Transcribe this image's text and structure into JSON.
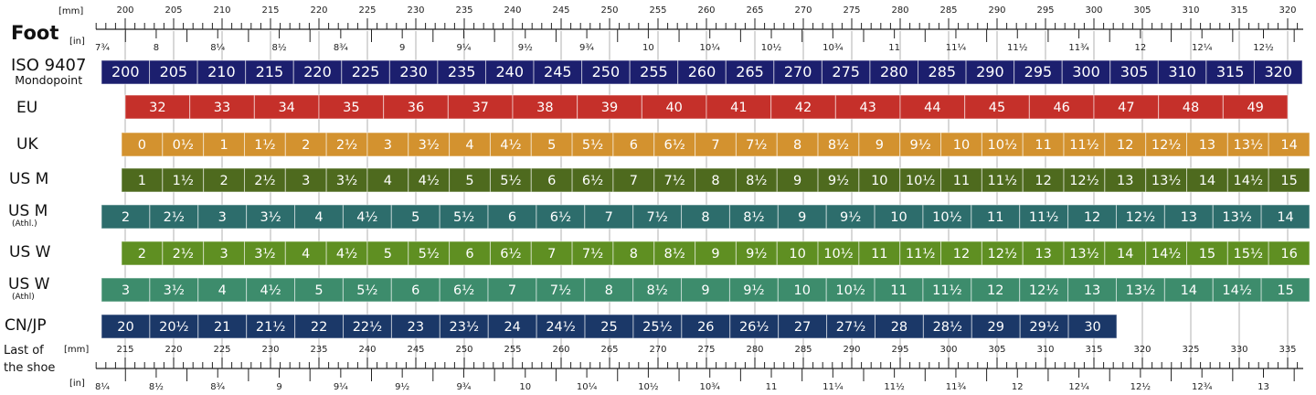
{
  "top_ruler": {
    "title": "Foot",
    "mm_unit": "[mm]",
    "in_unit": "[in]",
    "mm_labels": [
      "200",
      "205",
      "210",
      "215",
      "220",
      "225",
      "230",
      "235",
      "240",
      "245",
      "250",
      "255",
      "260",
      "265",
      "270",
      "275",
      "280",
      "285",
      "290",
      "295",
      "300",
      "305",
      "310",
      "315",
      "320"
    ],
    "in_labels": [
      "7¾",
      "8",
      "8¼",
      "8½",
      "8¾",
      "9",
      "9¼",
      "9½",
      "9¾",
      "10",
      "10¼",
      "10½",
      "10¾",
      "11",
      "11¼",
      "11½",
      "11¾",
      "12",
      "12¼",
      "12½"
    ]
  },
  "bottom_ruler": {
    "title_line1": "Last of",
    "title_line2": "the shoe",
    "mm_unit": "[mm]",
    "in_unit": "[in]",
    "mm_labels": [
      "215",
      "220",
      "225",
      "230",
      "235",
      "240",
      "245",
      "250",
      "255",
      "260",
      "265",
      "270",
      "275",
      "280",
      "285",
      "290",
      "295",
      "300",
      "305",
      "310",
      "315",
      "320",
      "325",
      "330",
      "335"
    ],
    "in_labels": [
      "8¼",
      "8½",
      "8¾",
      "9",
      "9¼",
      "9½",
      "9¾",
      "10",
      "10¼",
      "10½",
      "10¾",
      "11",
      "11¼",
      "11½",
      "11¾",
      "12",
      "12¼",
      "12½",
      "12¾",
      "13"
    ]
  },
  "rows": [
    {
      "label": "ISO 9407",
      "sublabel": "Mondopoint",
      "color": "#1c1f6e",
      "values": [
        "200",
        "205",
        "210",
        "215",
        "220",
        "225",
        "230",
        "235",
        "240",
        "245",
        "250",
        "255",
        "260",
        "265",
        "270",
        "275",
        "280",
        "285",
        "290",
        "295",
        "300",
        "305",
        "310",
        "315",
        "320"
      ]
    },
    {
      "label": "EU",
      "sublabel": "",
      "color": "#c5302a",
      "values": [
        "32",
        "33",
        "34",
        "35",
        "36",
        "37",
        "38",
        "39",
        "40",
        "41",
        "42",
        "43",
        "44",
        "45",
        "46",
        "47",
        "48",
        "49"
      ]
    },
    {
      "label": "UK",
      "sublabel": "",
      "color": "#d3922f",
      "values": [
        "0",
        "0½",
        "1",
        "1½",
        "2",
        "2½",
        "3",
        "3½",
        "4",
        "4½",
        "5",
        "5½",
        "6",
        "6½",
        "7",
        "7½",
        "8",
        "8½",
        "9",
        "9½",
        "10",
        "10½",
        "11",
        "11½",
        "12",
        "12½",
        "13",
        "13½",
        "14"
      ]
    },
    {
      "label": "US M",
      "sublabel": "",
      "color": "#4e6a1e",
      "values": [
        "1",
        "1½",
        "2",
        "2½",
        "3",
        "3½",
        "4",
        "4½",
        "5",
        "5½",
        "6",
        "6½",
        "7",
        "7½",
        "8",
        "8½",
        "9",
        "9½",
        "10",
        "10½",
        "11",
        "11½",
        "12",
        "12½",
        "13",
        "13½",
        "14",
        "14½",
        "15"
      ]
    },
    {
      "label": "US M",
      "sublabel": "(Athl.)",
      "color": "#2d6d6c",
      "values": [
        "2",
        "2½",
        "3",
        "3½",
        "4",
        "4½",
        "5",
        "5½",
        "6",
        "6½",
        "7",
        "7½",
        "8",
        "8½",
        "9",
        "9½",
        "10",
        "10½",
        "11",
        "11½",
        "12",
        "12½",
        "13",
        "13½",
        "14"
      ]
    },
    {
      "label": "US W",
      "sublabel": "",
      "color": "#5f8f22",
      "values": [
        "2",
        "2½",
        "3",
        "3½",
        "4",
        "4½",
        "5",
        "5½",
        "6",
        "6½",
        "7",
        "7½",
        "8",
        "8½",
        "9",
        "9½",
        "10",
        "10½",
        "11",
        "11½",
        "12",
        "12½",
        "13",
        "13½",
        "14",
        "14½",
        "15",
        "15½",
        "16"
      ]
    },
    {
      "label": "US W",
      "sublabel": "(Athl)",
      "color": "#3d8c6c",
      "values": [
        "3",
        "3½",
        "4",
        "4½",
        "5",
        "5½",
        "6",
        "6½",
        "7",
        "7½",
        "8",
        "8½",
        "9",
        "9½",
        "10",
        "10½",
        "11",
        "11½",
        "12",
        "12½",
        "13",
        "13½",
        "14",
        "14½",
        "15"
      ]
    },
    {
      "label": "CN/JP",
      "sublabel": "",
      "color": "#1b3868",
      "values": [
        "20",
        "20½",
        "21",
        "21½",
        "22",
        "22½",
        "23",
        "23½",
        "24",
        "24½",
        "25",
        "25½",
        "26",
        "26½",
        "27",
        "27½",
        "28",
        "28½",
        "29",
        "29½",
        "30"
      ]
    }
  ]
}
